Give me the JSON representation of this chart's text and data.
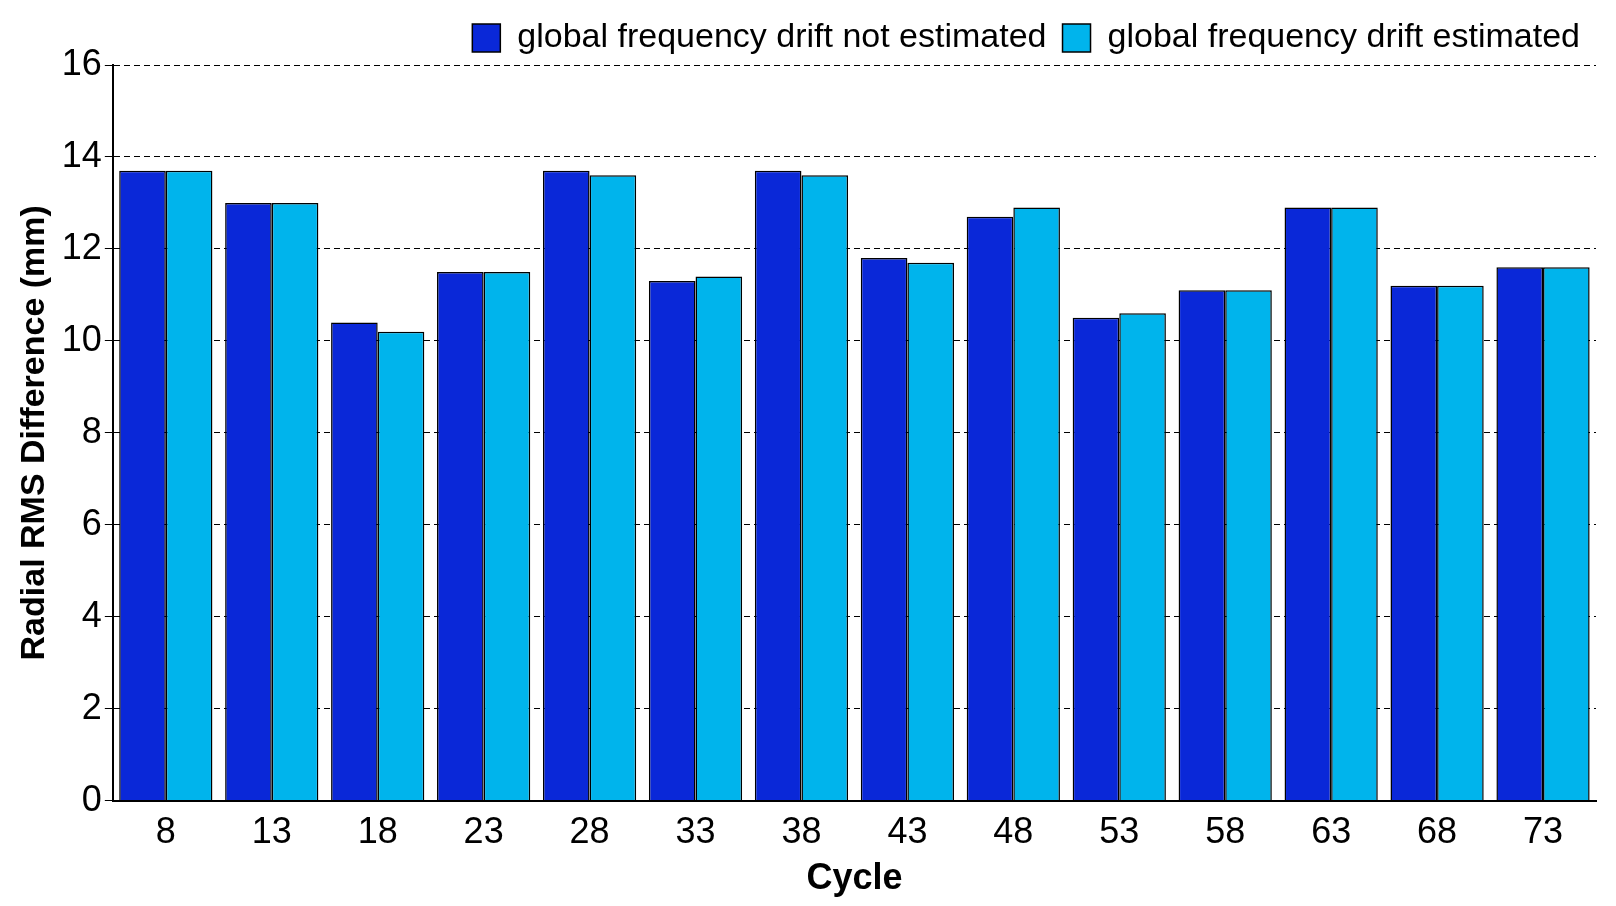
{
  "chart_data": {
    "type": "bar",
    "xlabel": "Cycle",
    "ylabel": "Radial RMS Difference (mm)",
    "categories": [
      "8",
      "13",
      "18",
      "23",
      "28",
      "33",
      "38",
      "43",
      "48",
      "53",
      "58",
      "63",
      "68",
      "73"
    ],
    "series": [
      {
        "name": "global frequency drift not estimated",
        "color": "#0a28d8",
        "values": [
          13.7,
          13.0,
          10.4,
          11.5,
          13.7,
          11.3,
          13.7,
          11.8,
          12.7,
          10.5,
          11.1,
          12.9,
          11.2,
          11.6
        ]
      },
      {
        "name": "global frequency drift estimated",
        "color": "#00b4ec",
        "values": [
          13.7,
          13.0,
          10.2,
          11.5,
          13.6,
          11.4,
          13.6,
          11.7,
          12.9,
          10.6,
          11.1,
          12.9,
          11.2,
          11.6
        ]
      }
    ],
    "ylim": [
      0,
      16
    ],
    "yticks": [
      0,
      2,
      4,
      6,
      8,
      10,
      12,
      14,
      16
    ],
    "grid": "y",
    "legend": "top right"
  }
}
